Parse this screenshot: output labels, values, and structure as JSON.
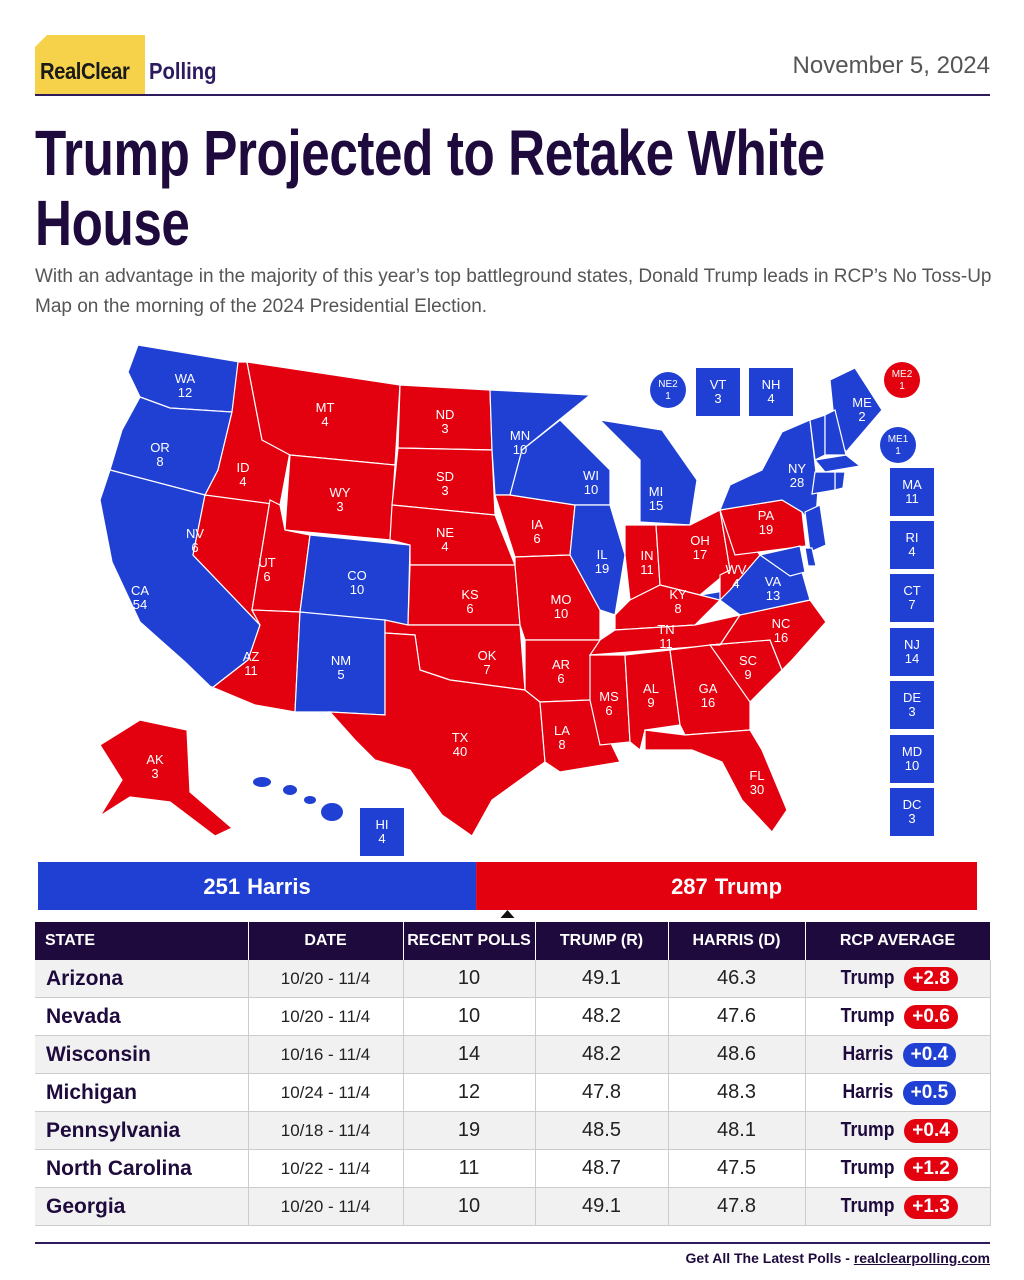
{
  "header": {
    "logo": [
      "RealClear",
      "Polling"
    ],
    "date": "November 5, 2024"
  },
  "title": "Trump Projected to Retake White House",
  "subtitle": "With an advantage in the majority of this year’s top battleground states, Donald Trump leads in RCP’s No Toss-Up Map on the morning of the 2024 Presidential Election.",
  "map": {
    "states": [
      {
        "label": "WA",
        "votes": 12,
        "color": "#2040d4"
      },
      {
        "label": "OR",
        "votes": 8,
        "color": "#2040d4"
      },
      {
        "label": "CA",
        "votes": 54,
        "color": "#2040d4"
      },
      {
        "label": "NV",
        "votes": 6,
        "color": "#e3000f"
      },
      {
        "label": "ID",
        "votes": 4,
        "color": "#e3000f"
      },
      {
        "label": "MT",
        "votes": 4,
        "color": "#e3000f"
      },
      {
        "label": "WY",
        "votes": 3,
        "color": "#e3000f"
      },
      {
        "label": "UT",
        "votes": 6,
        "color": "#e3000f"
      },
      {
        "label": "CO",
        "votes": 10,
        "color": "#2040d4"
      },
      {
        "label": "AZ",
        "votes": 11,
        "color": "#e3000f"
      },
      {
        "label": "NM",
        "votes": 5,
        "color": "#2040d4"
      },
      {
        "label": "ND",
        "votes": 3,
        "color": "#e3000f"
      },
      {
        "label": "SD",
        "votes": 3,
        "color": "#e3000f"
      },
      {
        "label": "NE",
        "votes": 4,
        "color": "#e3000f"
      },
      {
        "label": "KS",
        "votes": 6,
        "color": "#e3000f"
      },
      {
        "label": "OK",
        "votes": 7,
        "color": "#e3000f"
      },
      {
        "label": "TX",
        "votes": 40,
        "color": "#e3000f"
      },
      {
        "label": "MN",
        "votes": 10,
        "color": "#2040d4"
      },
      {
        "label": "IA",
        "votes": 6,
        "color": "#e3000f"
      },
      {
        "label": "MO",
        "votes": 10,
        "color": "#e3000f"
      },
      {
        "label": "AR",
        "votes": 6,
        "color": "#e3000f"
      },
      {
        "label": "LA",
        "votes": 8,
        "color": "#e3000f"
      },
      {
        "label": "WI",
        "votes": 10,
        "color": "#2040d4"
      },
      {
        "label": "IL",
        "votes": 19,
        "color": "#2040d4"
      },
      {
        "label": "MI",
        "votes": 15,
        "color": "#2040d4"
      },
      {
        "label": "IN",
        "votes": 11,
        "color": "#e3000f"
      },
      {
        "label": "OH",
        "votes": 17,
        "color": "#e3000f"
      },
      {
        "label": "KY",
        "votes": 8,
        "color": "#e3000f"
      },
      {
        "label": "TN",
        "votes": 11,
        "color": "#e3000f"
      },
      {
        "label": "MS",
        "votes": 6,
        "color": "#e3000f"
      },
      {
        "label": "AL",
        "votes": 9,
        "color": "#e3000f"
      },
      {
        "label": "GA",
        "votes": 16,
        "color": "#e3000f"
      },
      {
        "label": "FL",
        "votes": 30,
        "color": "#e3000f"
      },
      {
        "label": "SC",
        "votes": 9,
        "color": "#e3000f"
      },
      {
        "label": "NC",
        "votes": 16,
        "color": "#e3000f"
      },
      {
        "label": "VA",
        "votes": 13,
        "color": "#2040d4"
      },
      {
        "label": "WV",
        "votes": 4,
        "color": "#e3000f"
      },
      {
        "label": "PA",
        "votes": 19,
        "color": "#e3000f"
      },
      {
        "label": "NY",
        "votes": 28,
        "color": "#2040d4"
      },
      {
        "label": "ME",
        "votes": 2,
        "color": "#2040d4"
      },
      {
        "label": "AK",
        "votes": 3,
        "color": "#e3000f"
      },
      {
        "label": "VT",
        "votes": 3,
        "color": "#2040d4"
      },
      {
        "label": "NH",
        "votes": 4,
        "color": "#2040d4"
      },
      {
        "label": "MA",
        "votes": 11,
        "color": "#2040d4"
      },
      {
        "label": "RI",
        "votes": 4,
        "color": "#2040d4"
      },
      {
        "label": "CT",
        "votes": 7,
        "color": "#2040d4"
      },
      {
        "label": "NJ",
        "votes": 14,
        "color": "#2040d4"
      },
      {
        "label": "DE",
        "votes": 3,
        "color": "#2040d4"
      },
      {
        "label": "MD",
        "votes": 10,
        "color": "#2040d4"
      },
      {
        "label": "DC",
        "votes": 3,
        "color": "#2040d4"
      },
      {
        "label": "HI",
        "votes": 4,
        "color": "#2040d4"
      },
      {
        "label": "NE2",
        "votes": 1,
        "color": "#2040d4"
      },
      {
        "label": "ME2",
        "votes": 1,
        "color": "#e3000f"
      },
      {
        "label": "ME1",
        "votes": 1,
        "color": "#2040d4"
      }
    ]
  },
  "tally": [
    {
      "votes": 251,
      "name": "Harris",
      "color": "#2040d4"
    },
    {
      "votes": 287,
      "name": "Trump",
      "color": "#e3000f"
    }
  ],
  "table": {
    "columns": [
      "STATE",
      "DATE",
      "RECENT POLLS",
      "TRUMP (R)",
      "HARRIS (D)",
      "RCP AVERAGE"
    ],
    "rows": [
      {
        "state": "Arizona",
        "date": "10/20 - 11/4",
        "polls": 10,
        "trump": 49.1,
        "harris": 46.3,
        "leader": "Trump",
        "spread": "+2.8"
      },
      {
        "state": "Nevada",
        "date": "10/20 - 11/4",
        "polls": 10,
        "trump": 48.2,
        "harris": 47.6,
        "leader": "Trump",
        "spread": "+0.6"
      },
      {
        "state": "Wisconsin",
        "date": "10/16 - 11/4",
        "polls": 14,
        "trump": 48.2,
        "harris": 48.6,
        "leader": "Harris",
        "spread": "+0.4"
      },
      {
        "state": "Michigan",
        "date": "10/24 - 11/4",
        "polls": 12,
        "trump": 47.8,
        "harris": 48.3,
        "leader": "Harris",
        "spread": "+0.5"
      },
      {
        "state": "Pennsylvania",
        "date": "10/18 - 11/4",
        "polls": 19,
        "trump": 48.5,
        "harris": 48.1,
        "leader": "Trump",
        "spread": "+0.4"
      },
      {
        "state": "North Carolina",
        "date": "10/22 - 11/4",
        "polls": 11,
        "trump": 48.7,
        "harris": 47.5,
        "leader": "Trump",
        "spread": "+1.2"
      },
      {
        "state": "Georgia",
        "date": "10/20 - 11/4",
        "polls": 10,
        "trump": 49.1,
        "harris": 47.8,
        "leader": "Trump",
        "spread": "+1.3"
      }
    ]
  },
  "footer": {
    "text": "Get All The Latest Polls",
    "separator": "-",
    "link": "realclearpolling.com"
  }
}
